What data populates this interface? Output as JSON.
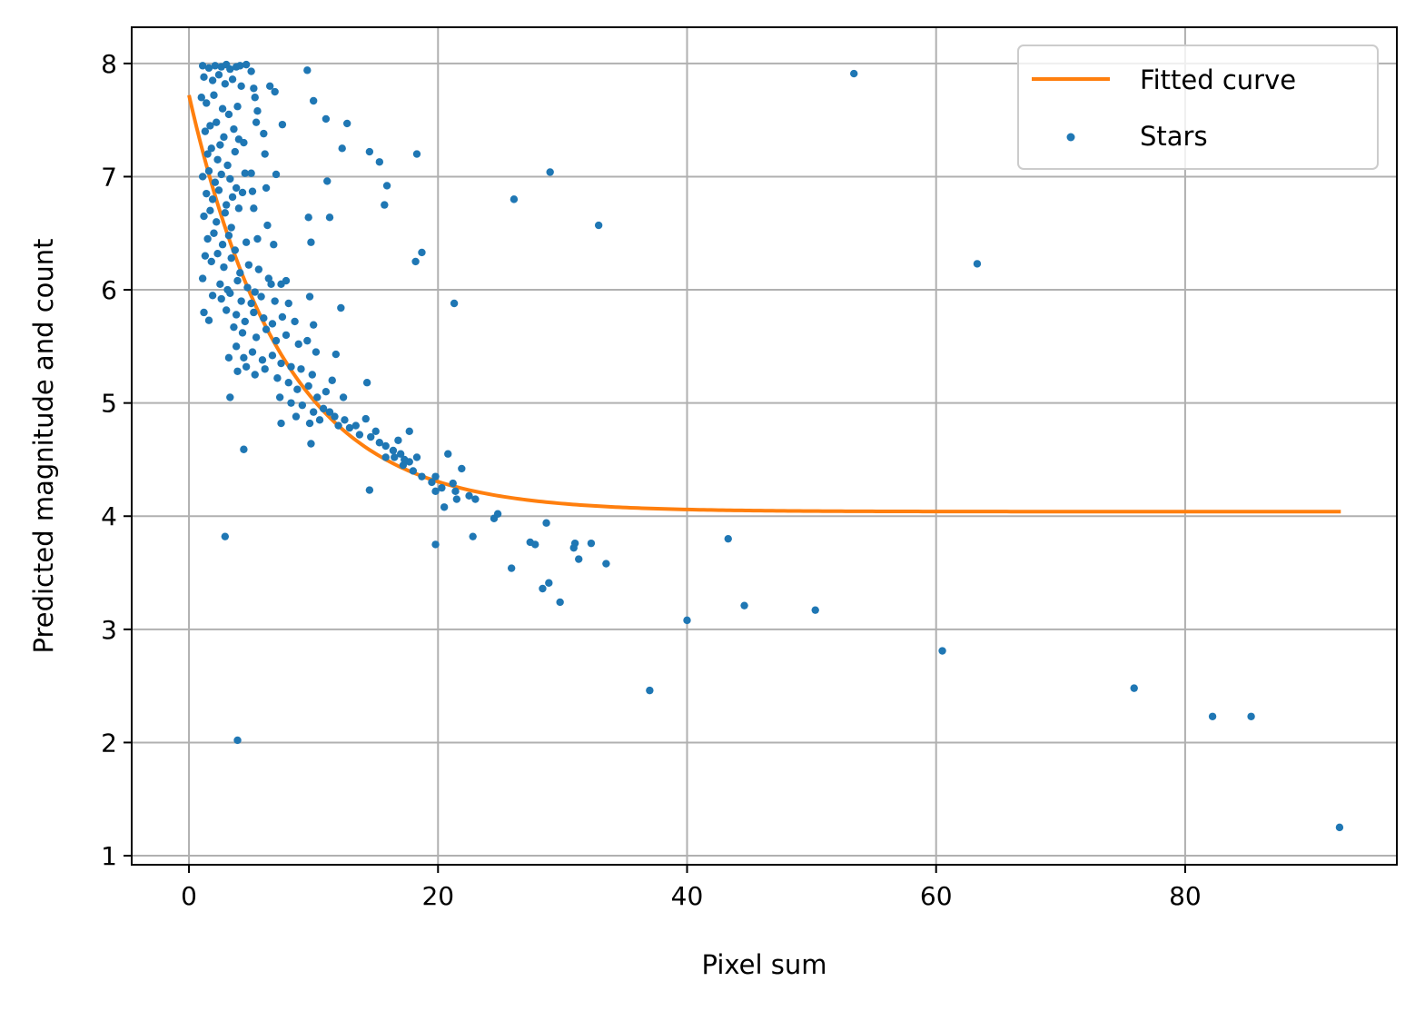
{
  "chart_data": {
    "type": "scatter",
    "title": "",
    "xlabel": "Pixel sum",
    "ylabel": "Predicted magnitude and count",
    "xlim": [
      -4.6,
      97.0
    ],
    "ylim": [
      0.92,
      8.32
    ],
    "xticks": [
      0,
      20,
      40,
      60,
      80
    ],
    "yticks": [
      1,
      2,
      3,
      4,
      5,
      6,
      7,
      8
    ],
    "grid": true,
    "legend_position": "top-right",
    "colors": {
      "curve": "#ff7f0e",
      "points": "#1f77b4",
      "grid": "#b0b0b0"
    },
    "series": [
      {
        "name": "Fitted curve",
        "type": "line",
        "model": {
          "form": "a*exp(-x/b)+c",
          "a": 3.68,
          "b": 7.6,
          "c": 4.04
        },
        "x_range": [
          0,
          92.5
        ]
      },
      {
        "name": "Stars",
        "type": "scatter",
        "points": [
          [
            1.1,
            7.98
          ],
          [
            1.6,
            7.96
          ],
          [
            2.1,
            7.98
          ],
          [
            2.6,
            7.97
          ],
          [
            3.0,
            7.99
          ],
          [
            3.3,
            7.95
          ],
          [
            3.8,
            7.97
          ],
          [
            4.1,
            7.98
          ],
          [
            4.6,
            7.99
          ],
          [
            5.0,
            7.93
          ],
          [
            1.2,
            7.88
          ],
          [
            1.9,
            7.85
          ],
          [
            2.4,
            7.9
          ],
          [
            2.9,
            7.82
          ],
          [
            3.5,
            7.86
          ],
          [
            4.2,
            7.8
          ],
          [
            5.2,
            7.78
          ],
          [
            6.5,
            7.8
          ],
          [
            6.9,
            7.75
          ],
          [
            9.5,
            7.94
          ],
          [
            1.0,
            7.7
          ],
          [
            1.4,
            7.65
          ],
          [
            2.0,
            7.72
          ],
          [
            2.7,
            7.6
          ],
          [
            3.2,
            7.55
          ],
          [
            3.9,
            7.62
          ],
          [
            5.3,
            7.7
          ],
          [
            5.5,
            7.58
          ],
          [
            10.0,
            7.67
          ],
          [
            11.0,
            7.51
          ],
          [
            1.3,
            7.4
          ],
          [
            1.7,
            7.45
          ],
          [
            2.2,
            7.48
          ],
          [
            2.8,
            7.35
          ],
          [
            3.6,
            7.42
          ],
          [
            4.0,
            7.33
          ],
          [
            5.4,
            7.48
          ],
          [
            7.5,
            7.46
          ],
          [
            12.7,
            7.47
          ],
          [
            6.0,
            7.38
          ],
          [
            1.5,
            7.2
          ],
          [
            1.8,
            7.25
          ],
          [
            2.3,
            7.15
          ],
          [
            2.5,
            7.28
          ],
          [
            3.1,
            7.1
          ],
          [
            3.7,
            7.22
          ],
          [
            4.4,
            7.3
          ],
          [
            6.1,
            7.2
          ],
          [
            12.3,
            7.25
          ],
          [
            14.5,
            7.22
          ],
          [
            1.1,
            7.0
          ],
          [
            1.6,
            7.05
          ],
          [
            2.1,
            6.95
          ],
          [
            2.6,
            7.02
          ],
          [
            3.3,
            6.98
          ],
          [
            3.8,
            6.9
          ],
          [
            4.5,
            7.03
          ],
          [
            5.0,
            7.03
          ],
          [
            7.0,
            7.02
          ],
          [
            15.3,
            7.13
          ],
          [
            18.3,
            7.2
          ],
          [
            1.4,
            6.85
          ],
          [
            1.9,
            6.8
          ],
          [
            2.4,
            6.88
          ],
          [
            3.0,
            6.75
          ],
          [
            3.5,
            6.82
          ],
          [
            4.3,
            6.86
          ],
          [
            5.1,
            6.87
          ],
          [
            6.2,
            6.9
          ],
          [
            11.1,
            6.96
          ],
          [
            15.9,
            6.92
          ],
          [
            29.0,
            7.04
          ],
          [
            1.2,
            6.65
          ],
          [
            1.7,
            6.7
          ],
          [
            2.2,
            6.6
          ],
          [
            2.9,
            6.68
          ],
          [
            3.4,
            6.55
          ],
          [
            4.0,
            6.72
          ],
          [
            5.2,
            6.72
          ],
          [
            9.6,
            6.64
          ],
          [
            11.3,
            6.64
          ],
          [
            15.7,
            6.75
          ],
          [
            26.1,
            6.8
          ],
          [
            32.9,
            6.57
          ],
          [
            6.3,
            6.57
          ],
          [
            1.5,
            6.45
          ],
          [
            2.0,
            6.5
          ],
          [
            2.7,
            6.4
          ],
          [
            3.2,
            6.48
          ],
          [
            3.7,
            6.35
          ],
          [
            4.6,
            6.42
          ],
          [
            5.5,
            6.45
          ],
          [
            6.8,
            6.4
          ],
          [
            9.8,
            6.42
          ],
          [
            18.7,
            6.33
          ],
          [
            1.3,
            6.3
          ],
          [
            1.8,
            6.25
          ],
          [
            2.3,
            6.32
          ],
          [
            2.8,
            6.2
          ],
          [
            3.4,
            6.28
          ],
          [
            4.1,
            6.15
          ],
          [
            4.8,
            6.22
          ],
          [
            5.6,
            6.18
          ],
          [
            6.4,
            6.1
          ],
          [
            18.2,
            6.25
          ],
          [
            1.1,
            6.1
          ],
          [
            2.5,
            6.05
          ],
          [
            3.1,
            6.0
          ],
          [
            3.9,
            6.08
          ],
          [
            4.7,
            6.02
          ],
          [
            5.3,
            5.98
          ],
          [
            6.6,
            6.05
          ],
          [
            7.4,
            6.05
          ],
          [
            7.8,
            6.08
          ],
          [
            1.9,
            5.95
          ],
          [
            2.6,
            5.92
          ],
          [
            3.3,
            5.97
          ],
          [
            4.2,
            5.9
          ],
          [
            5.0,
            5.88
          ],
          [
            5.8,
            5.94
          ],
          [
            6.9,
            5.9
          ],
          [
            8.0,
            5.88
          ],
          [
            9.7,
            5.94
          ],
          [
            21.3,
            5.88
          ],
          [
            12.2,
            5.84
          ],
          [
            1.2,
            5.8
          ],
          [
            1.6,
            5.73
          ],
          [
            3.0,
            5.82
          ],
          [
            3.8,
            5.78
          ],
          [
            4.5,
            5.72
          ],
          [
            5.2,
            5.8
          ],
          [
            6.0,
            5.75
          ],
          [
            6.7,
            5.7
          ],
          [
            7.5,
            5.76
          ],
          [
            8.5,
            5.72
          ],
          [
            10.0,
            5.69
          ],
          [
            3.6,
            5.67
          ],
          [
            4.3,
            5.62
          ],
          [
            5.4,
            5.58
          ],
          [
            6.2,
            5.65
          ],
          [
            7.0,
            5.55
          ],
          [
            7.8,
            5.6
          ],
          [
            8.8,
            5.52
          ],
          [
            9.5,
            5.55
          ],
          [
            10.2,
            5.45
          ],
          [
            11.8,
            5.43
          ],
          [
            3.8,
            5.5
          ],
          [
            4.4,
            5.4
          ],
          [
            5.1,
            5.45
          ],
          [
            5.9,
            5.38
          ],
          [
            6.7,
            5.42
          ],
          [
            7.4,
            5.35
          ],
          [
            8.2,
            5.32
          ],
          [
            9.0,
            5.3
          ],
          [
            9.9,
            5.25
          ],
          [
            3.2,
            5.4
          ],
          [
            3.9,
            5.28
          ],
          [
            4.6,
            5.32
          ],
          [
            5.3,
            5.25
          ],
          [
            6.1,
            5.3
          ],
          [
            7.1,
            5.22
          ],
          [
            8.0,
            5.18
          ],
          [
            8.7,
            5.12
          ],
          [
            9.6,
            5.15
          ],
          [
            10.3,
            5.05
          ],
          [
            11.0,
            5.1
          ],
          [
            11.5,
            5.2
          ],
          [
            12.4,
            5.05
          ],
          [
            14.3,
            5.18
          ],
          [
            7.3,
            5.05
          ],
          [
            8.2,
            5.0
          ],
          [
            9.1,
            4.98
          ],
          [
            10.0,
            4.92
          ],
          [
            10.8,
            4.95
          ],
          [
            11.7,
            4.88
          ],
          [
            12.5,
            4.85
          ],
          [
            13.4,
            4.8
          ],
          [
            14.2,
            4.86
          ],
          [
            15.0,
            4.75
          ],
          [
            3.3,
            5.05
          ],
          [
            7.4,
            4.82
          ],
          [
            8.6,
            4.88
          ],
          [
            9.7,
            4.82
          ],
          [
            10.5,
            4.85
          ],
          [
            11.3,
            4.92
          ],
          [
            12.0,
            4.8
          ],
          [
            12.9,
            4.78
          ],
          [
            13.7,
            4.72
          ],
          [
            14.6,
            4.7
          ],
          [
            15.3,
            4.65
          ],
          [
            15.8,
            4.62
          ],
          [
            16.4,
            4.58
          ],
          [
            17.0,
            4.55
          ],
          [
            17.7,
            4.48
          ],
          [
            18.3,
            4.52
          ],
          [
            9.8,
            4.64
          ],
          [
            4.4,
            4.59
          ],
          [
            16.5,
            4.52
          ],
          [
            17.2,
            4.45
          ],
          [
            18.0,
            4.4
          ],
          [
            18.7,
            4.35
          ],
          [
            19.5,
            4.3
          ],
          [
            20.3,
            4.25
          ],
          [
            20.8,
            4.55
          ],
          [
            21.4,
            4.22
          ],
          [
            21.9,
            4.42
          ],
          [
            22.5,
            4.18
          ],
          [
            23.0,
            4.15
          ],
          [
            17.7,
            4.75
          ],
          [
            16.8,
            4.67
          ],
          [
            19.8,
            4.35
          ],
          [
            20.5,
            4.08
          ],
          [
            21.2,
            4.29
          ],
          [
            21.5,
            4.15
          ],
          [
            24.8,
            4.02
          ],
          [
            24.5,
            3.98
          ],
          [
            14.5,
            4.23
          ],
          [
            19.8,
            4.22
          ],
          [
            15.8,
            4.52
          ],
          [
            17.3,
            4.5
          ],
          [
            27.4,
            3.77
          ],
          [
            27.8,
            3.75
          ],
          [
            31.0,
            3.76
          ],
          [
            32.3,
            3.76
          ],
          [
            30.9,
            3.72
          ],
          [
            28.7,
            3.94
          ],
          [
            22.8,
            3.82
          ],
          [
            19.8,
            3.75
          ],
          [
            25.9,
            3.54
          ],
          [
            33.5,
            3.58
          ],
          [
            31.3,
            3.62
          ],
          [
            28.9,
            3.41
          ],
          [
            28.4,
            3.36
          ],
          [
            29.8,
            3.24
          ],
          [
            40.0,
            3.08
          ],
          [
            44.6,
            3.21
          ],
          [
            50.3,
            3.17
          ],
          [
            43.3,
            3.8
          ],
          [
            37.0,
            2.46
          ],
          [
            60.5,
            2.81
          ],
          [
            75.9,
            2.48
          ],
          [
            82.2,
            2.23
          ],
          [
            85.3,
            2.23
          ],
          [
            92.4,
            1.25
          ],
          [
            2.9,
            3.82
          ],
          [
            3.9,
            2.02
          ],
          [
            63.3,
            6.23
          ],
          [
            53.4,
            7.91
          ]
        ]
      }
    ]
  }
}
